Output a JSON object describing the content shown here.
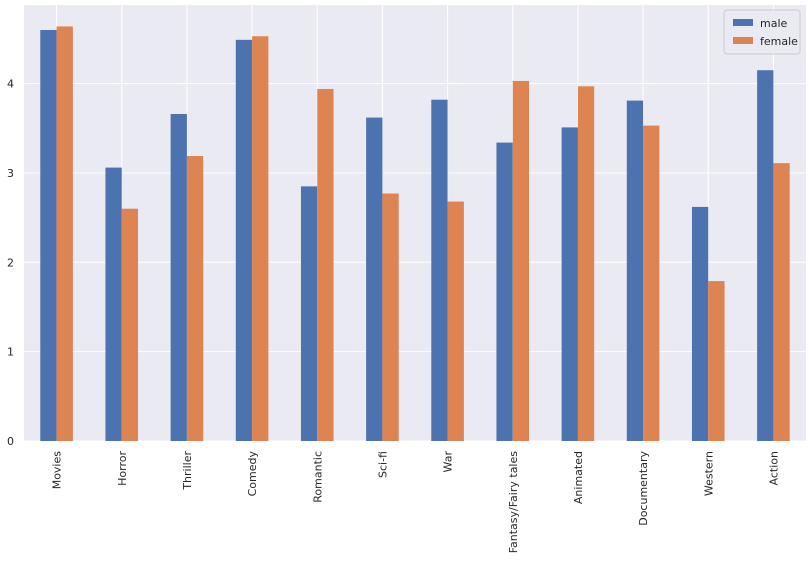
{
  "chart_data": {
    "type": "bar",
    "title": "",
    "xlabel": "",
    "ylabel": "",
    "categories": [
      "Movies",
      "Horror",
      "Thriller",
      "Comedy",
      "Romantic",
      "Sci-fi",
      "War",
      "Fantasy/Fairy tales",
      "Animated",
      "Documentary",
      "Western",
      "Action"
    ],
    "series": [
      {
        "name": "male",
        "color": "#4c72b0",
        "values": [
          4.6,
          3.06,
          3.66,
          4.49,
          2.85,
          3.62,
          3.82,
          3.34,
          3.51,
          3.81,
          2.62,
          4.15
        ]
      },
      {
        "name": "female",
        "color": "#dd8452",
        "values": [
          4.64,
          2.6,
          3.19,
          4.53,
          3.94,
          2.77,
          2.68,
          4.03,
          3.97,
          3.53,
          1.79,
          3.11
        ]
      }
    ],
    "ylim": [
      0,
      4.88
    ],
    "yticks": [
      0,
      1,
      2,
      3,
      4
    ],
    "grid": true,
    "legend_position": "top-right",
    "background_color": "#eaeaf2",
    "grid_color": "#ffffff"
  }
}
